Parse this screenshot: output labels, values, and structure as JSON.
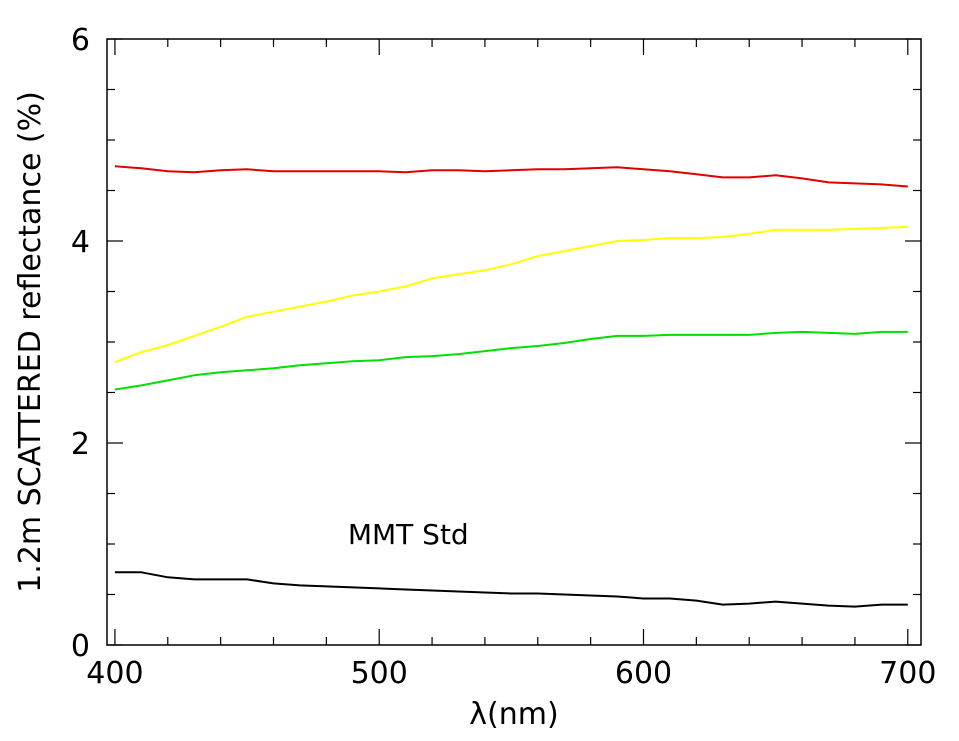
{
  "chart_data": {
    "type": "line",
    "title": "",
    "xlabel": "λ(nm)",
    "ylabel": "1.2m SCATTERED reflectance (%)",
    "xlim": [
      397,
      705
    ],
    "ylim": [
      0,
      6
    ],
    "x_ticks": [
      "400",
      "500",
      "600",
      "700"
    ],
    "y_ticks": [
      "0",
      "2",
      "4",
      "6"
    ],
    "grid": false,
    "annotation": {
      "text": "MMT Std",
      "x": 511,
      "y": 1.1
    },
    "x": [
      400,
      410,
      420,
      430,
      440,
      450,
      460,
      470,
      480,
      490,
      500,
      510,
      520,
      530,
      540,
      550,
      560,
      570,
      580,
      590,
      600,
      610,
      620,
      630,
      640,
      650,
      660,
      670,
      680,
      690,
      700
    ],
    "series": [
      {
        "color": "#e00000",
        "values": [
          4.74,
          4.72,
          4.69,
          4.68,
          4.7,
          4.71,
          4.69,
          4.69,
          4.69,
          4.69,
          4.69,
          4.68,
          4.7,
          4.7,
          4.69,
          4.7,
          4.71,
          4.71,
          4.72,
          4.73,
          4.71,
          4.69,
          4.66,
          4.63,
          4.63,
          4.65,
          4.62,
          4.58,
          4.57,
          4.56,
          4.54
        ]
      },
      {
        "color": "#ffff00",
        "values": [
          2.8,
          2.9,
          2.97,
          3.06,
          3.15,
          3.25,
          3.3,
          3.35,
          3.4,
          3.46,
          3.5,
          3.55,
          3.63,
          3.67,
          3.71,
          3.77,
          3.85,
          3.9,
          3.95,
          4.0,
          4.01,
          4.03,
          4.03,
          4.04,
          4.07,
          4.11,
          4.11,
          4.11,
          4.12,
          4.13,
          4.14
        ]
      },
      {
        "color": "#00e000",
        "values": [
          2.53,
          2.57,
          2.62,
          2.67,
          2.7,
          2.72,
          2.74,
          2.77,
          2.79,
          2.81,
          2.82,
          2.85,
          2.86,
          2.88,
          2.91,
          2.94,
          2.96,
          2.99,
          3.03,
          3.06,
          3.06,
          3.07,
          3.07,
          3.07,
          3.07,
          3.09,
          3.1,
          3.09,
          3.08,
          3.1,
          3.1
        ]
      },
      {
        "color": "#000000",
        "values": [
          0.72,
          0.72,
          0.67,
          0.65,
          0.65,
          0.65,
          0.61,
          0.59,
          0.58,
          0.57,
          0.56,
          0.55,
          0.54,
          0.53,
          0.52,
          0.51,
          0.51,
          0.5,
          0.49,
          0.48,
          0.46,
          0.46,
          0.44,
          0.4,
          0.41,
          0.43,
          0.41,
          0.39,
          0.38,
          0.4,
          0.4
        ]
      }
    ]
  }
}
